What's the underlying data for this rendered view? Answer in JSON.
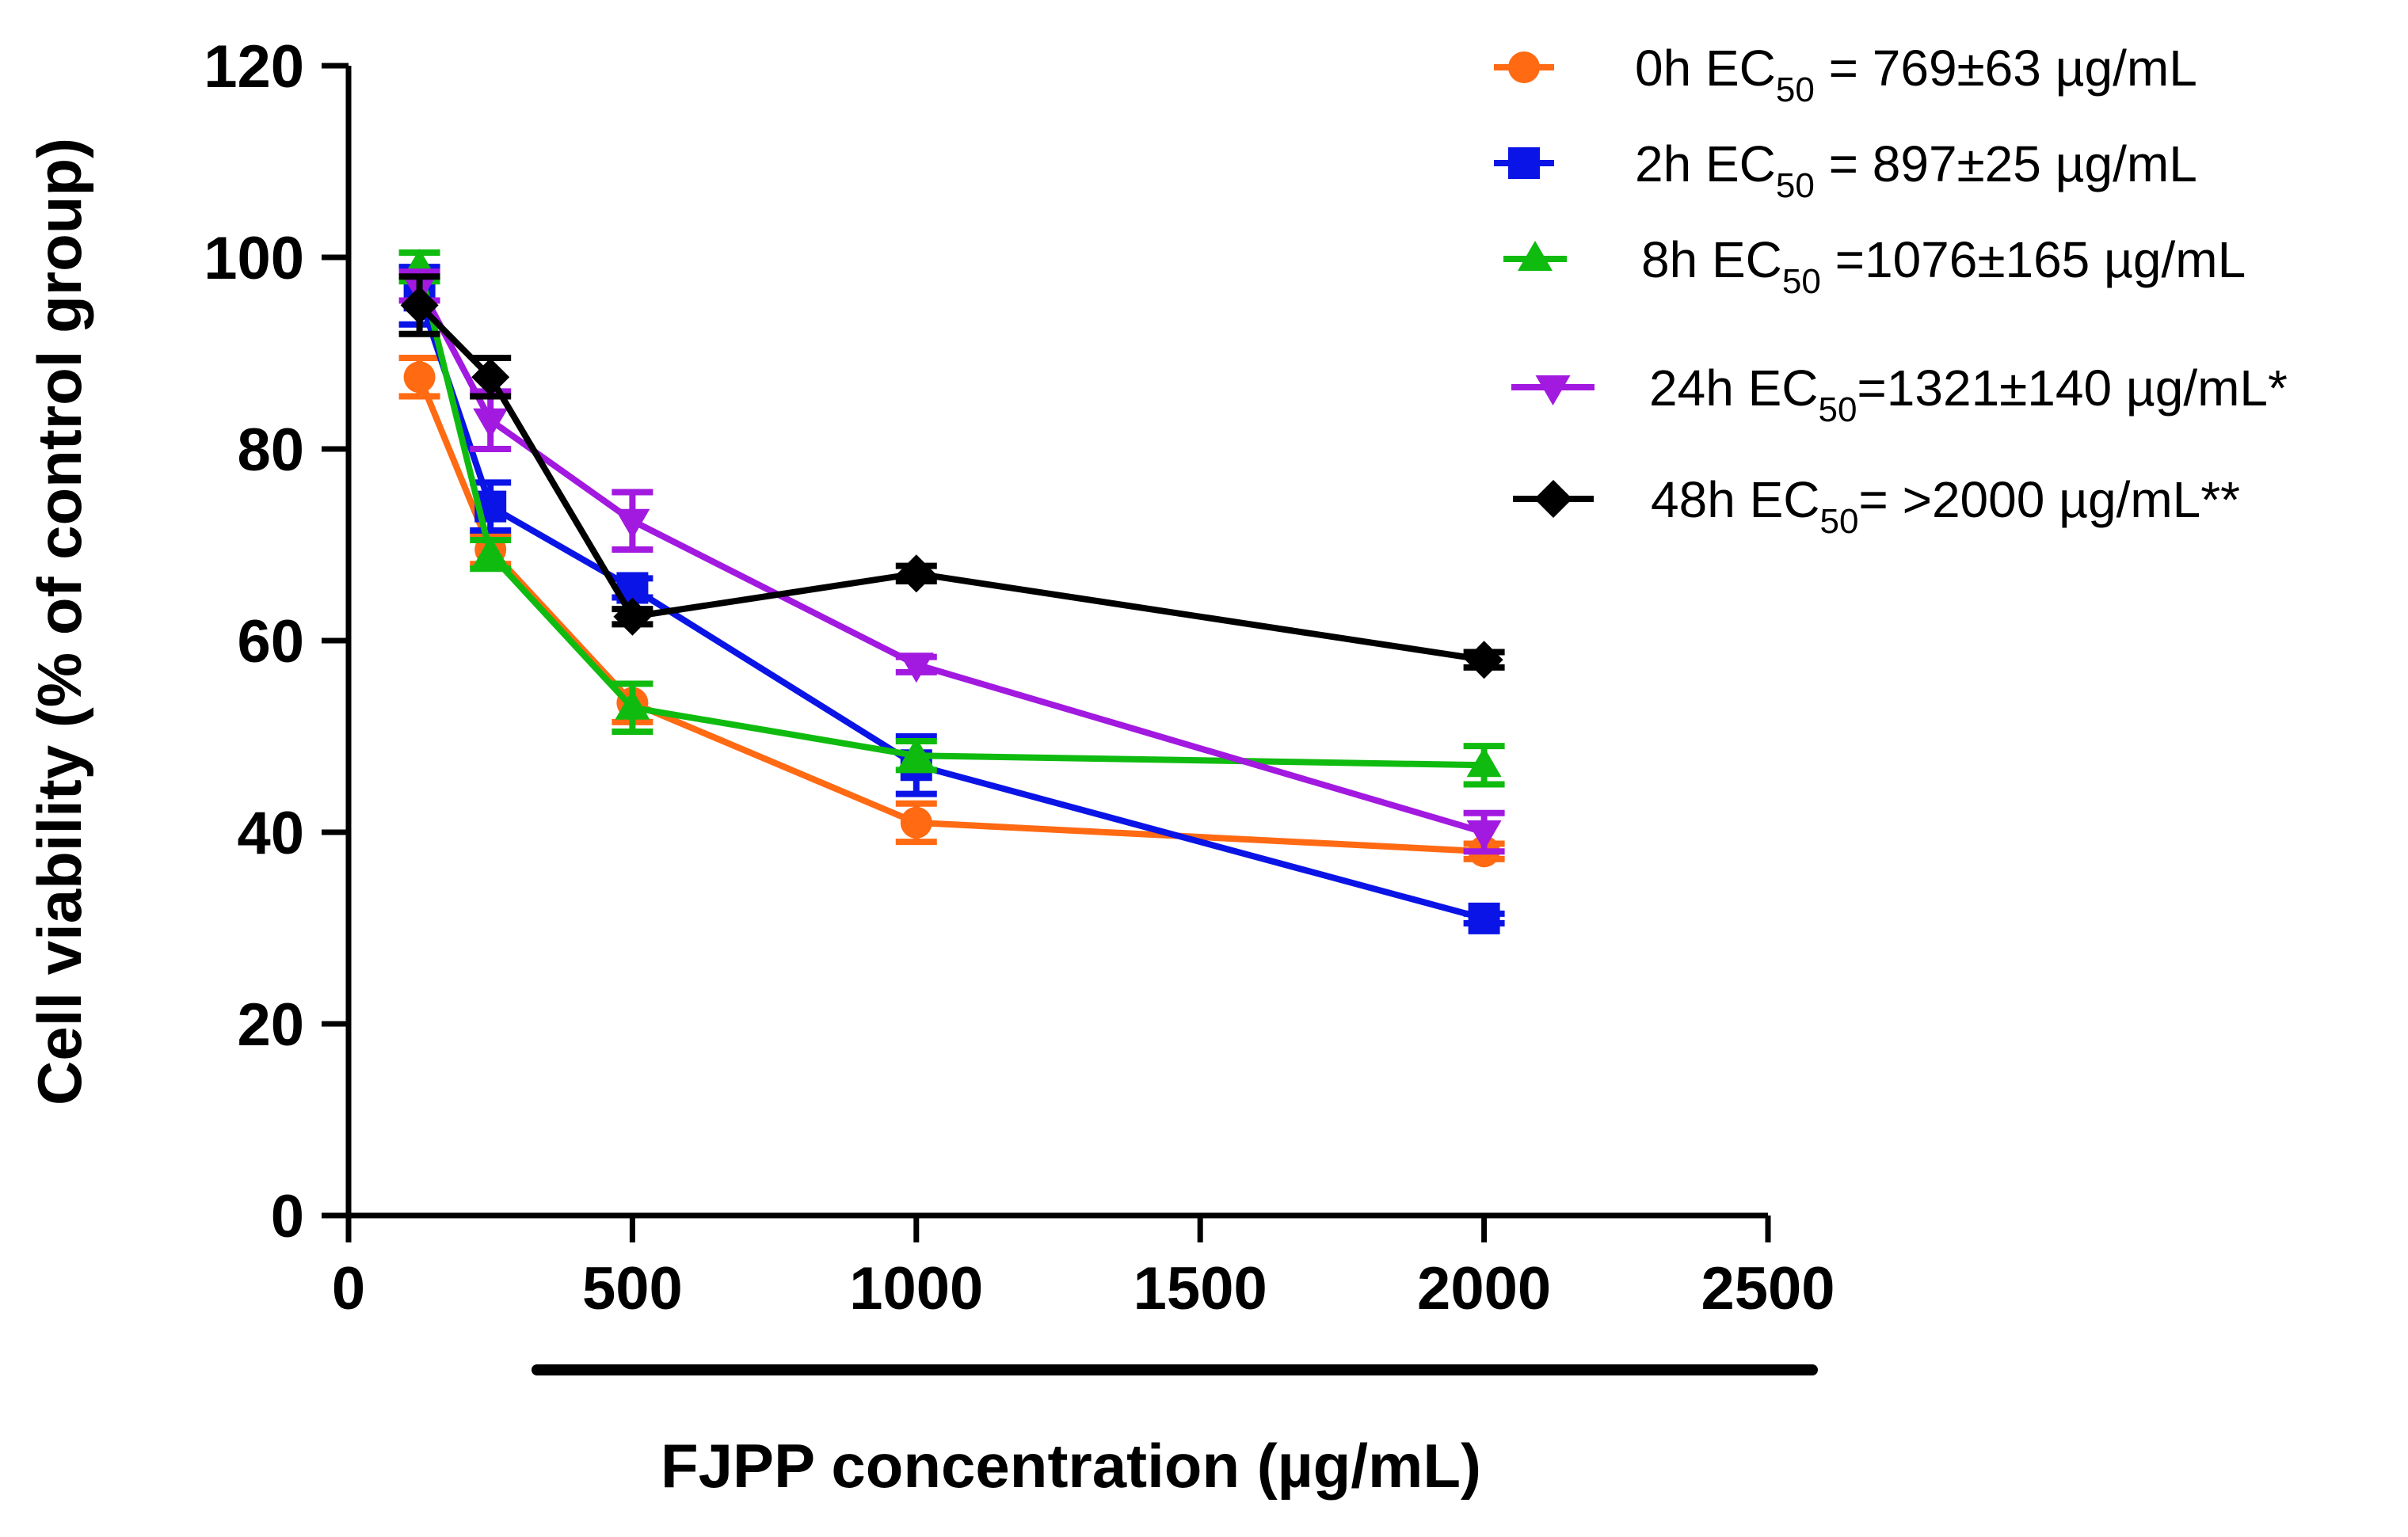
{
  "chart_data": {
    "type": "line",
    "title": "",
    "xlabel": "FJPP concentration (µg/mL)",
    "ylabel": "Cell viability (% of control group)",
    "xlim": [
      0,
      2500
    ],
    "ylim": [
      0,
      120
    ],
    "x_ticks": [
      "0",
      "500",
      "1000",
      "1500",
      "2000",
      "2500"
    ],
    "y_ticks": [
      "0",
      "20",
      "40",
      "60",
      "80",
      "100",
      "120"
    ],
    "grid": false,
    "legend_position": "top-right",
    "series": [
      {
        "name_prefix": "0h EC",
        "name_sub": "50",
        "name_suffix": " = 769±63 µg/mL",
        "color": "#ff6a13",
        "marker": "circle",
        "x": [
          125,
          250,
          500,
          1000,
          2000
        ],
        "y": [
          87.5,
          69.5,
          53.5,
          41,
          38
        ],
        "err": [
          2,
          1.5,
          2,
          2,
          0.8
        ]
      },
      {
        "name_prefix": "2h EC",
        "name_sub": "50",
        "name_suffix": " = 897±25 µg/mL",
        "color": "#0a14e6",
        "marker": "square",
        "x": [
          125,
          250,
          500,
          1000,
          2000
        ],
        "y": [
          96,
          74,
          65.5,
          47,
          31
        ],
        "err": [
          3,
          2.5,
          1,
          3,
          0.5
        ]
      },
      {
        "name_prefix": "8h EC",
        "name_sub": "50",
        "name_suffix": " =1076±165 µg/mL",
        "color": "#10bb10",
        "marker": "triangle-up",
        "x": [
          125,
          250,
          500,
          1000,
          2000
        ],
        "y": [
          99,
          69,
          53,
          48,
          47
        ],
        "err": [
          1.5,
          1.5,
          2.5,
          1.5,
          2
        ]
      },
      {
        "name_prefix": "24h EC",
        "name_sub": "50",
        "name_suffix": "=1321±140 µg/mL*",
        "color": "#a219e0",
        "marker": "triangle-down",
        "x": [
          125,
          250,
          500,
          1000,
          2000
        ],
        "y": [
          97,
          83,
          72.5,
          57.5,
          40
        ],
        "err": [
          1.5,
          3,
          3,
          0.8,
          2
        ]
      },
      {
        "name_prefix": "48h EC",
        "name_sub": "50",
        "name_suffix": "= >2000 µg/mL**",
        "color": "#000000",
        "marker": "diamond",
        "x": [
          125,
          250,
          500,
          1000,
          2000
        ],
        "y": [
          95,
          87.5,
          62.5,
          67,
          58
        ],
        "err": [
          3,
          2,
          0.8,
          0.8,
          0.8
        ]
      }
    ]
  }
}
